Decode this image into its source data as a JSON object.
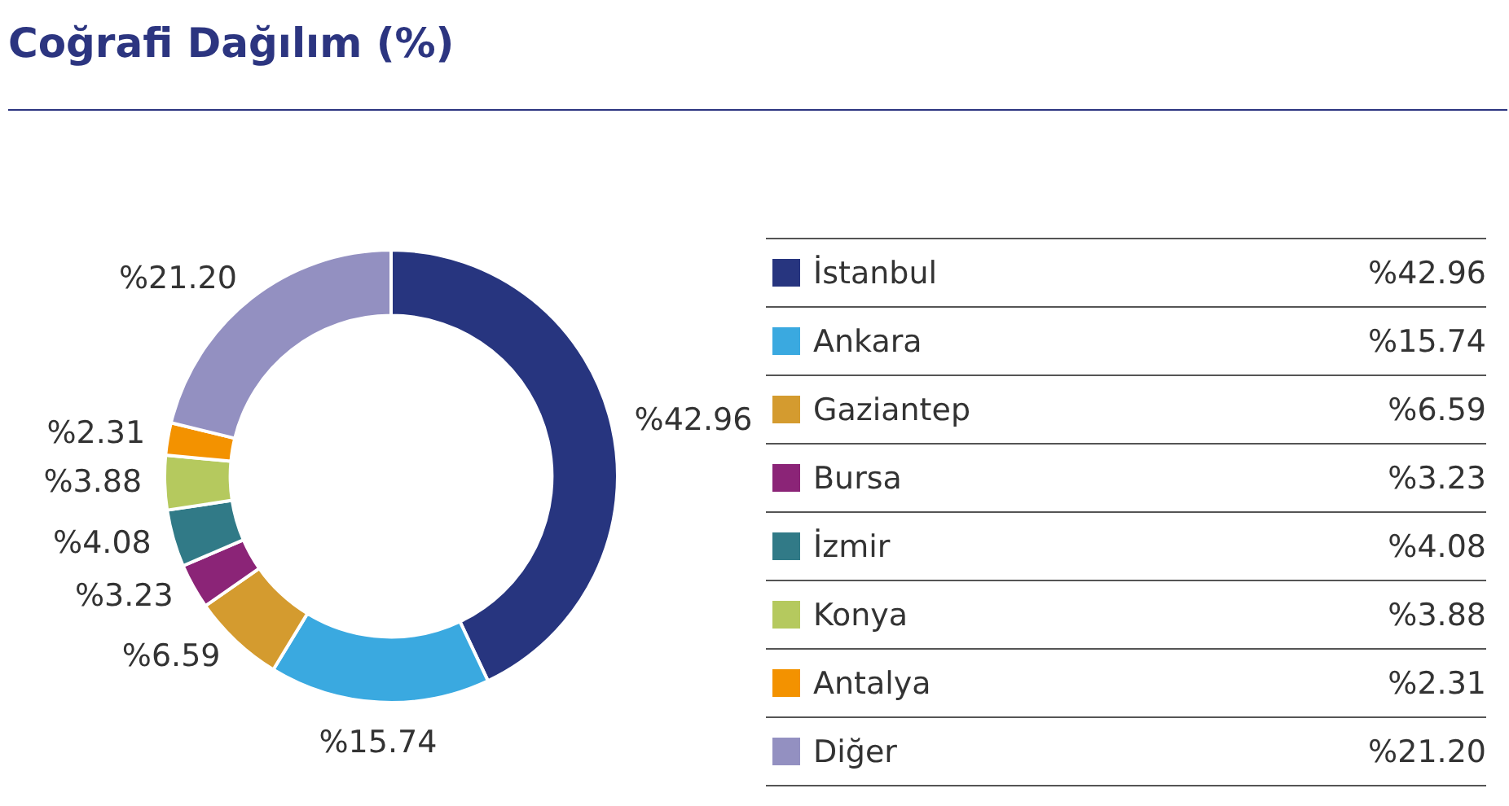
{
  "chart_data": {
    "type": "donut",
    "title": "Coğrafi Dağılım (%)",
    "categories": [
      "İstanbul",
      "Ankara",
      "Gaziantep",
      "Bursa",
      "İzmir",
      "Konya",
      "Antalya",
      "Diğer"
    ],
    "values": [
      42.96,
      15.74,
      6.59,
      3.23,
      4.08,
      3.88,
      2.31,
      21.2
    ],
    "value_labels": [
      "%42.96",
      "%15.74",
      "%6.59",
      "%3.23",
      "%4.08",
      "%3.88",
      "%2.31",
      "%21.20"
    ],
    "colors": [
      "#27357f",
      "#3aa9e0",
      "#d49b2f",
      "#8b2477",
      "#317a87",
      "#b5c95e",
      "#f39200",
      "#9390c1"
    ],
    "legend": "right"
  }
}
